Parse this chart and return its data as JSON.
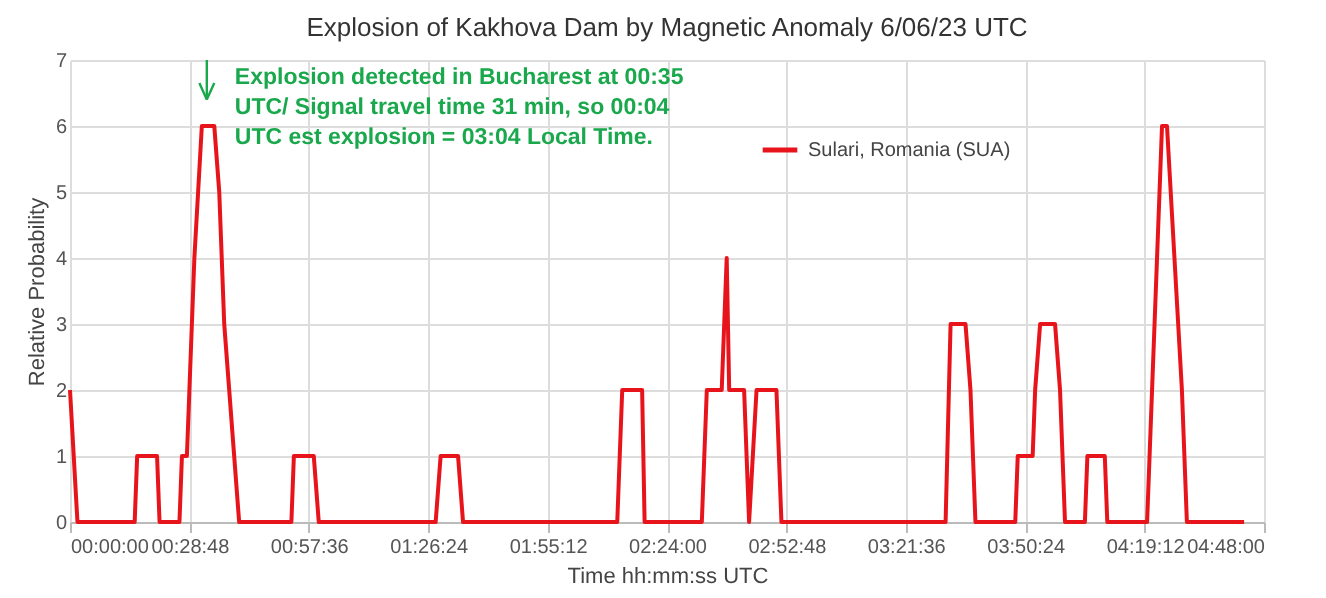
{
  "chart_data": {
    "type": "line",
    "title": "Explosion of Kakhova Dam by Magnetic Anomaly 6/06/23 UTC",
    "xlabel": "Time hh:mm:ss UTC",
    "ylabel": "Relative Probability",
    "x": [
      0.0,
      0.03,
      0.26,
      0.27,
      0.35,
      0.36,
      0.44,
      0.45,
      0.47,
      0.48,
      0.5,
      0.53,
      0.58,
      0.6,
      0.62,
      0.64,
      0.66,
      0.68,
      0.89,
      0.9,
      0.98,
      1.0,
      1.47,
      1.49,
      1.56,
      1.58,
      2.2,
      2.22,
      2.3,
      2.31,
      2.54,
      2.56,
      2.62,
      2.64,
      2.65,
      2.71,
      2.73,
      2.76,
      2.84,
      2.86,
      3.52,
      3.54,
      3.6,
      3.62,
      3.64,
      3.8,
      3.81,
      3.87,
      3.88,
      3.9,
      3.96,
      3.98,
      4.0,
      4.08,
      4.09,
      4.16,
      4.17,
      4.33,
      4.34,
      4.35,
      4.37,
      4.39,
      4.41,
      4.44,
      4.47,
      4.49,
      4.72
    ],
    "series": [
      {
        "name": "Sulari, Romania (SUA)",
        "color": "#e8141c",
        "values": [
          2,
          0,
          0,
          1,
          1,
          0,
          0,
          1,
          1,
          2,
          4,
          6,
          6,
          5,
          3,
          2,
          1,
          0,
          0,
          1,
          1,
          0,
          0,
          1,
          1,
          0,
          0,
          2,
          2,
          0,
          0,
          2,
          2,
          4,
          2,
          2,
          0,
          2,
          2,
          0,
          0,
          3,
          3,
          2,
          0,
          0,
          1,
          1,
          2,
          3,
          3,
          2,
          0,
          0,
          1,
          1,
          0,
          0,
          1,
          2,
          4,
          6,
          6,
          4,
          2,
          0,
          0
        ]
      }
    ],
    "xlim": [
      0,
      4.8
    ],
    "xticks": [
      {
        "value": 0,
        "label": "00:00:00"
      },
      {
        "value": 0.48,
        "label": "00:28:48"
      },
      {
        "value": 0.96,
        "label": "00:57:36"
      },
      {
        "value": 1.44,
        "label": "01:26:24"
      },
      {
        "value": 1.92,
        "label": "01:55:12"
      },
      {
        "value": 2.4,
        "label": "02:24:00"
      },
      {
        "value": 2.88,
        "label": "02:52:48"
      },
      {
        "value": 3.36,
        "label": "03:21:36"
      },
      {
        "value": 3.84,
        "label": "03:50:24"
      },
      {
        "value": 4.32,
        "label": "04:19:12"
      },
      {
        "value": 4.8,
        "label": "04:48:00"
      }
    ],
    "ylim": [
      0,
      7
    ],
    "yticks": [
      0,
      1,
      2,
      3,
      4,
      5,
      6,
      7
    ],
    "grid": true,
    "legend": "top right",
    "marker": "none",
    "line_style": "solid",
    "annotations": [
      {
        "text": "Explosion detected in Bucharest at 00:35\nUTC/  Signal travel time 31 min, so 00:04\nUTC est explosion = 03:04 Local Time.",
        "x": 0.55,
        "y": 6
      }
    ]
  }
}
